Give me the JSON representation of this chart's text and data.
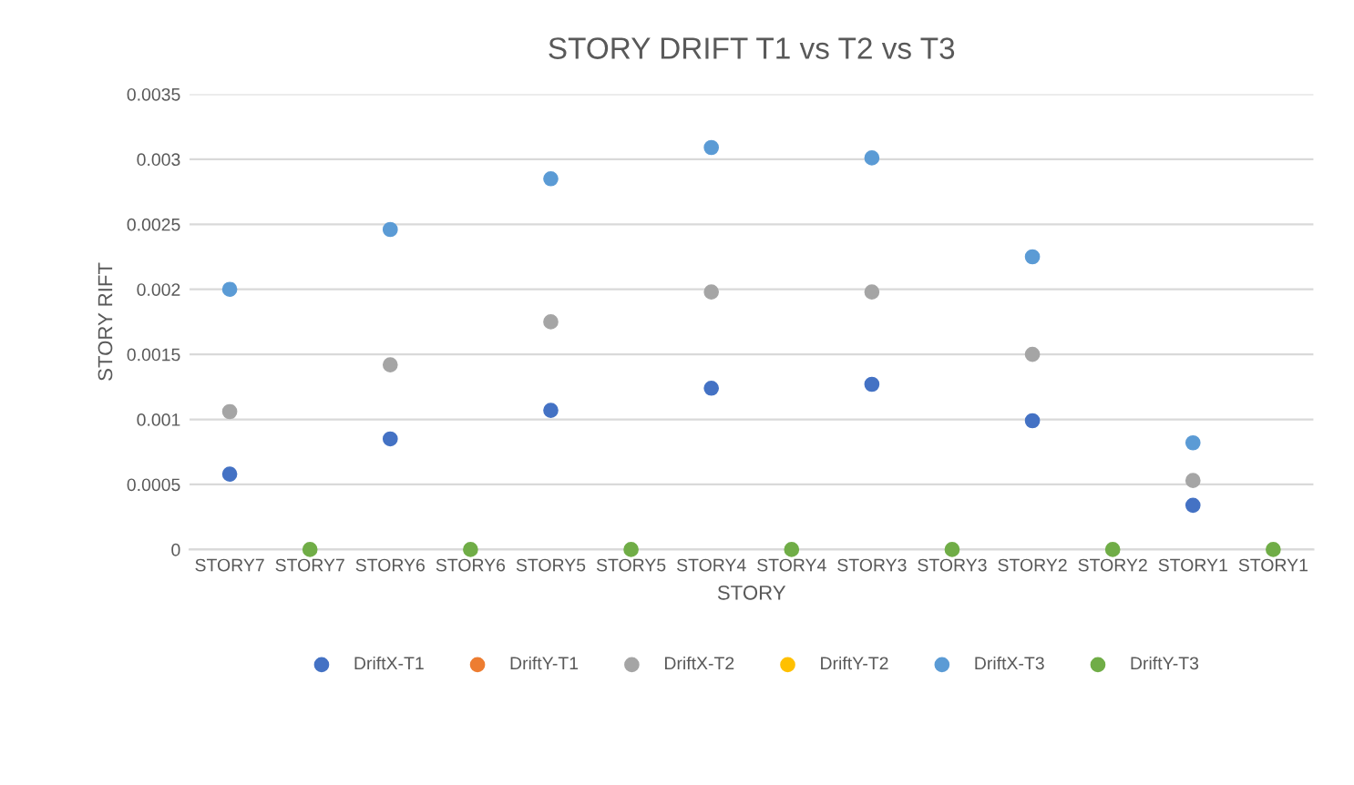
{
  "chart_data": {
    "type": "scatter",
    "title": "STORY DRIFT T1 vs T2 vs T3",
    "xlabel": "STORY",
    "ylabel": "STORY RIFT",
    "categories": [
      "STORY7",
      "STORY7",
      "STORY6",
      "STORY6",
      "STORY5",
      "STORY5",
      "STORY4",
      "STORY4",
      "STORY3",
      "STORY3",
      "STORY2",
      "STORY2",
      "STORY1",
      "STORY1"
    ],
    "series": [
      {
        "name": "DriftX-T1",
        "color": "#4472c4",
        "values": [
          0.00058,
          null,
          0.00085,
          null,
          0.00107,
          null,
          0.00124,
          null,
          0.00127,
          null,
          0.00099,
          null,
          0.00034,
          null
        ]
      },
      {
        "name": "DriftY-T1",
        "color": "#ed7d31",
        "values": [
          null,
          null,
          null,
          null,
          null,
          null,
          null,
          null,
          null,
          null,
          null,
          null,
          null,
          null
        ]
      },
      {
        "name": "DriftX-T2",
        "color": "#a5a5a5",
        "values": [
          0.00106,
          null,
          0.00142,
          null,
          0.00175,
          null,
          0.00198,
          null,
          0.00198,
          null,
          0.0015,
          null,
          0.00053,
          null
        ]
      },
      {
        "name": "DriftY-T2",
        "color": "#ffc000",
        "values": [
          null,
          null,
          null,
          null,
          null,
          null,
          null,
          null,
          null,
          null,
          null,
          null,
          null,
          null
        ]
      },
      {
        "name": "DriftX-T3",
        "color": "#5b9bd5",
        "values": [
          0.002,
          null,
          0.00246,
          null,
          0.00285,
          null,
          0.00309,
          null,
          0.00301,
          null,
          0.00225,
          null,
          0.00082,
          null
        ]
      },
      {
        "name": "DriftY-T3",
        "color": "#70ad47",
        "values": [
          null,
          0,
          null,
          0,
          null,
          0,
          null,
          0,
          null,
          0,
          null,
          0,
          null,
          0
        ]
      }
    ],
    "ylim": [
      0,
      0.0035
    ],
    "yticks": [
      0,
      0.0005,
      0.001,
      0.0015,
      0.002,
      0.0025,
      0.003,
      0.0035
    ],
    "grid": "y",
    "legend": "bottom",
    "marker": "circle"
  }
}
